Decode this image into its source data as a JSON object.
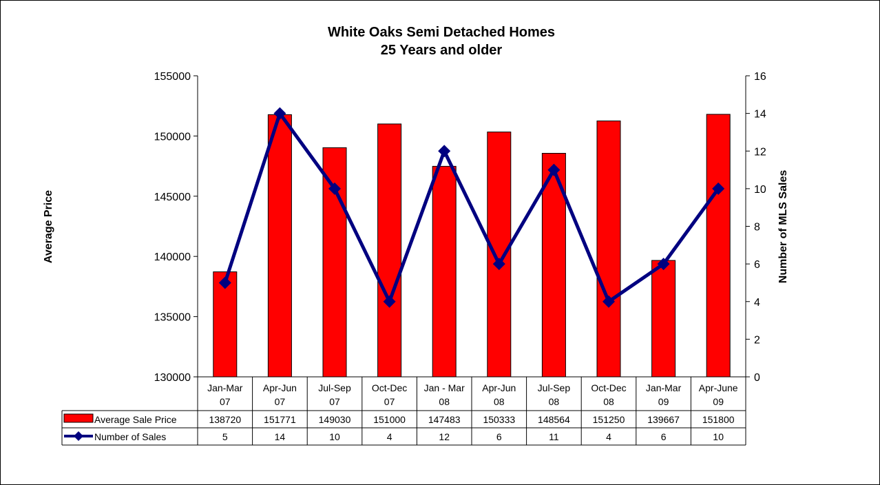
{
  "chart_data": {
    "type": "bar",
    "title": "White Oaks Semi Detached Homes",
    "subtitle": "25 Years and older",
    "categories": [
      [
        "Jan-Mar",
        "07"
      ],
      [
        "Apr-Jun",
        "07"
      ],
      [
        "Jul-Sep",
        "07"
      ],
      [
        "Oct-Dec",
        "07"
      ],
      [
        "Jan - Mar",
        "08"
      ],
      [
        "Apr-Jun",
        "08"
      ],
      [
        "Jul-Sep",
        "08"
      ],
      [
        "Oct-Dec",
        "08"
      ],
      [
        "Jan-Mar",
        "09"
      ],
      [
        "Apr-June",
        "09"
      ]
    ],
    "series": [
      {
        "name": "Average Sale Price",
        "kind": "bar",
        "axis": "left",
        "color": "#ff0000",
        "values": [
          138720,
          151771,
          149030,
          151000,
          147483,
          150333,
          148564,
          151250,
          139667,
          151800
        ]
      },
      {
        "name": "Number of Sales",
        "kind": "line",
        "axis": "right",
        "color": "#000080",
        "values": [
          5,
          14,
          10,
          4,
          12,
          6,
          11,
          4,
          6,
          10
        ]
      }
    ],
    "ylabel": "Average Price",
    "ylim": [
      130000,
      155000
    ],
    "yticks": [
      130000,
      135000,
      140000,
      145000,
      150000,
      155000
    ],
    "y2label": "Number of MLS Sales",
    "y2lim": [
      0,
      16
    ],
    "y2ticks": [
      0,
      2,
      4,
      6,
      8,
      10,
      12,
      14,
      16
    ],
    "grid": false,
    "legend": "data-table"
  }
}
